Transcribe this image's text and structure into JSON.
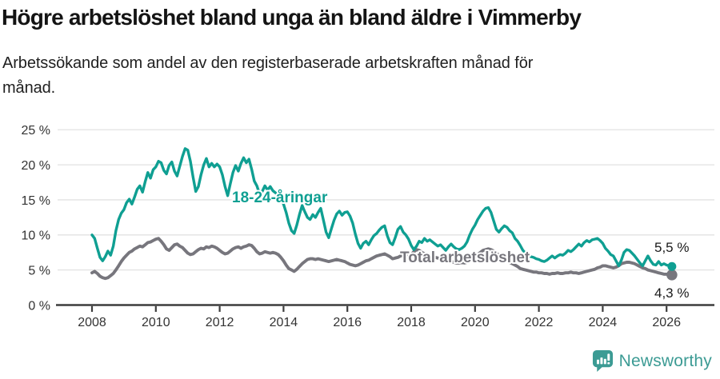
{
  "header": {
    "title": "Högre arbetslöshet bland unga än bland äldre i Vimmerby",
    "subtitle": "Arbetssökande som andel av den registerbaserade arbetskraften månad för månad."
  },
  "chart_data": {
    "type": "line",
    "title": "Högre arbetslöshet bland unga än bland äldre i Vimmerby",
    "x_start": "2008-01",
    "frequency": "monthly",
    "x_tick_years": [
      2008,
      2010,
      2012,
      2014,
      2016,
      2018,
      2020,
      2022,
      2024,
      2026
    ],
    "x_tick_labels": [
      "2008",
      "2010",
      "2012",
      "2014",
      "2016",
      "2018",
      "2020",
      "2022",
      "2024",
      "2026"
    ],
    "y_ticks": [
      0,
      5,
      10,
      15,
      20,
      25
    ],
    "y_tick_labels": [
      "0 %",
      "5 %",
      "10 %",
      "15 %",
      "20 %",
      "25 %"
    ],
    "ylim": [
      0,
      25
    ],
    "grid": true,
    "series": [
      {
        "name": "18-24-åringar",
        "color": "#0f9f92",
        "end_label": "5,5 %",
        "end_value": 5.5,
        "values": [
          10.0,
          9.5,
          8.1,
          6.8,
          6.3,
          6.9,
          7.7,
          7.1,
          8.4,
          10.6,
          12.2,
          13.1,
          13.6,
          14.6,
          15.1,
          14.4,
          15.4,
          16.5,
          17.0,
          16.1,
          17.6,
          18.9,
          18.1,
          19.3,
          19.7,
          20.5,
          20.3,
          19.2,
          18.7,
          19.9,
          20.4,
          19.1,
          18.4,
          19.8,
          21.2,
          22.3,
          22.1,
          20.5,
          18.2,
          16.2,
          16.9,
          18.6,
          20.0,
          20.9,
          19.7,
          20.2,
          19.7,
          20.1,
          19.7,
          18.6,
          16.9,
          15.6,
          17.3,
          18.9,
          19.9,
          19.1,
          20.2,
          21.0,
          20.3,
          20.8,
          19.4,
          17.7,
          17.0,
          15.8,
          16.2,
          17.0,
          16.4,
          16.9,
          16.3,
          16.0,
          15.7,
          15.1,
          14.4,
          13.2,
          11.7,
          10.6,
          10.2,
          11.4,
          12.9,
          14.2,
          13.3,
          12.5,
          12.2,
          12.9,
          12.5,
          13.2,
          13.8,
          12.1,
          10.4,
          9.6,
          10.9,
          12.1,
          13.0,
          13.4,
          12.8,
          13.2,
          13.3,
          12.7,
          11.7,
          10.1,
          8.8,
          8.1,
          8.8,
          9.1,
          8.6,
          9.3,
          9.9,
          10.2,
          10.7,
          11.1,
          11.3,
          9.9,
          8.9,
          8.6,
          9.6,
          10.8,
          11.2,
          10.4,
          10.0,
          9.4,
          8.5,
          7.9,
          8.4,
          9.1,
          8.9,
          9.5,
          9.1,
          9.3,
          9.0,
          8.7,
          8.4,
          8.6,
          8.2,
          7.8,
          8.3,
          8.7,
          8.3,
          8.0,
          7.9,
          8.1,
          8.4,
          9.0,
          10.0,
          10.8,
          11.4,
          12.2,
          12.8,
          13.4,
          13.8,
          13.9,
          13.2,
          12.0,
          10.8,
          10.4,
          10.9,
          11.3,
          11.1,
          10.6,
          10.3,
          9.5,
          9.1,
          8.5,
          7.8,
          7.4,
          7.1,
          6.9,
          6.8,
          6.6,
          6.5,
          6.3,
          6.2,
          6.4,
          6.7,
          7.0,
          6.7,
          7.0,
          7.2,
          7.1,
          7.4,
          7.8,
          7.6,
          7.9,
          8.3,
          8.7,
          8.4,
          8.9,
          9.2,
          9.0,
          9.3,
          9.4,
          9.5,
          9.2,
          8.8,
          8.1,
          7.7,
          7.2,
          7.0,
          6.3,
          5.6,
          6.4,
          7.5,
          7.9,
          7.8,
          7.4,
          7.0,
          6.5,
          6.0,
          5.6,
          6.3,
          7.0,
          6.3,
          5.8,
          5.7,
          6.2,
          5.7,
          5.9,
          5.7,
          5.6,
          5.5
        ]
      },
      {
        "name": "Total arbetslöshet",
        "color": "#77767d",
        "end_label": "4,3 %",
        "end_value": 4.3,
        "values": [
          4.6,
          4.8,
          4.5,
          4.1,
          3.9,
          3.8,
          3.9,
          4.2,
          4.5,
          5.0,
          5.6,
          6.2,
          6.7,
          7.1,
          7.5,
          7.7,
          8.0,
          8.2,
          8.4,
          8.3,
          8.6,
          8.9,
          9.0,
          9.2,
          9.4,
          9.5,
          9.1,
          8.6,
          8.0,
          7.8,
          8.2,
          8.6,
          8.7,
          8.4,
          8.2,
          7.8,
          7.4,
          7.2,
          7.3,
          7.6,
          7.9,
          8.1,
          8.0,
          8.3,
          8.2,
          8.4,
          8.3,
          8.1,
          7.8,
          7.5,
          7.3,
          7.4,
          7.7,
          8.0,
          8.2,
          8.3,
          8.1,
          8.3,
          8.4,
          8.6,
          8.5,
          8.1,
          7.6,
          7.3,
          7.4,
          7.6,
          7.5,
          7.4,
          7.5,
          7.4,
          7.2,
          6.8,
          6.3,
          5.7,
          5.2,
          5.0,
          4.8,
          5.1,
          5.5,
          5.9,
          6.2,
          6.5,
          6.6,
          6.6,
          6.5,
          6.6,
          6.5,
          6.4,
          6.3,
          6.2,
          6.3,
          6.4,
          6.5,
          6.4,
          6.3,
          6.2,
          6.0,
          5.8,
          5.7,
          5.6,
          5.7,
          5.9,
          6.1,
          6.3,
          6.4,
          6.6,
          6.8,
          7.0,
          7.1,
          7.2,
          7.3,
          7.1,
          6.9,
          6.6,
          6.7,
          6.8,
          7.0,
          7.1,
          7.1,
          7.1,
          7.2,
          7.6,
          7.9,
          7.8,
          7.5,
          7.3,
          7.1,
          7.0,
          6.9,
          6.8,
          6.7,
          6.6,
          6.5,
          6.4,
          6.3,
          6.2,
          6.1,
          6.0,
          6.0,
          6.1,
          6.0,
          6.1,
          6.3,
          6.6,
          6.9,
          7.2,
          7.5,
          7.8,
          7.9,
          8.0,
          7.9,
          7.7,
          7.4,
          7.1,
          6.8,
          6.5,
          6.3,
          6.1,
          5.9,
          5.7,
          5.5,
          5.2,
          5.1,
          5.0,
          4.9,
          4.8,
          4.7,
          4.7,
          4.6,
          4.6,
          4.5,
          4.5,
          4.4,
          4.5,
          4.5,
          4.6,
          4.5,
          4.5,
          4.6,
          4.6,
          4.7,
          4.6,
          4.6,
          4.5,
          4.6,
          4.7,
          4.8,
          4.9,
          5.0,
          5.1,
          5.3,
          5.4,
          5.6,
          5.6,
          5.5,
          5.4,
          5.3,
          5.4,
          5.6,
          5.9,
          6.0,
          6.1,
          6.1,
          6.0,
          5.9,
          5.7,
          5.5,
          5.3,
          5.2,
          5.0,
          4.9,
          4.8,
          4.7,
          4.6,
          4.5,
          4.4,
          4.4,
          4.3,
          4.3
        ]
      }
    ]
  },
  "footer": {
    "brand": "Newsworthy",
    "brand_color": "#3c9b94"
  }
}
